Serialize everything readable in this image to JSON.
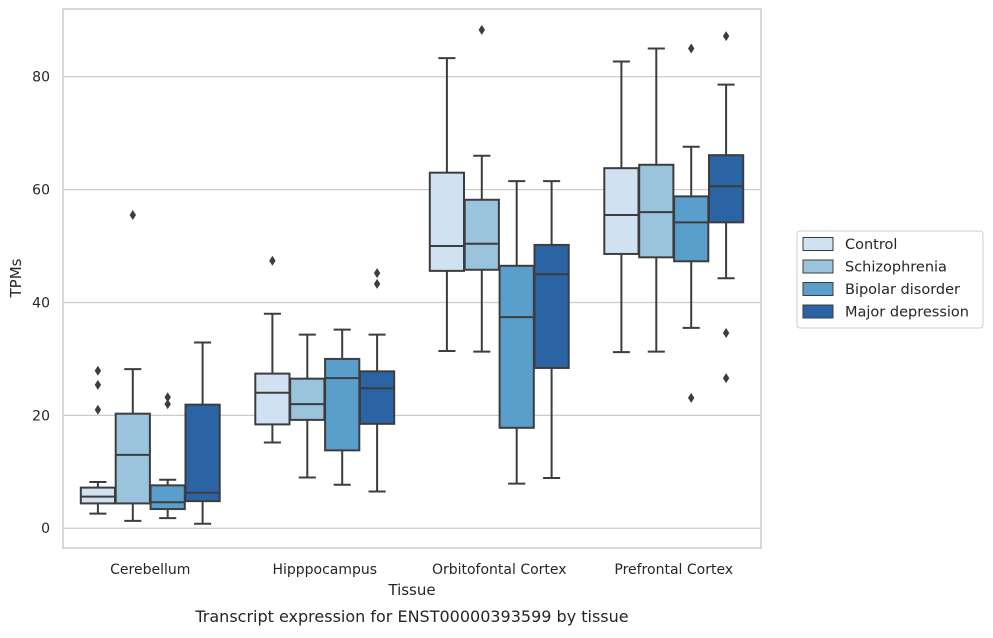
{
  "chart_data": {
    "type": "box",
    "caption": "Transcript expression for ENST00000393599 by tissue",
    "xlabel": "Tissue",
    "ylabel": "TPMs",
    "ylim": [
      -3.5,
      92
    ],
    "yticks": [
      0,
      20,
      40,
      60,
      80
    ],
    "grid": "horizontal",
    "legend_position": "outside-right",
    "categories": [
      "Cerebellum",
      "Hipppocampus",
      "Orbitofontal Cortex",
      "Prefrontal Cortex"
    ],
    "series": [
      {
        "name": "Control",
        "color": "#d0e1f2",
        "boxes": [
          {
            "whislo": 2.6,
            "q1": 4.4,
            "med": 5.6,
            "q3": 7.2,
            "whishi": 8.2,
            "fliers": [
              21.0,
              25.4,
              27.9
            ]
          },
          {
            "whislo": 15.2,
            "q1": 18.4,
            "med": 24.0,
            "q3": 27.4,
            "whishi": 38.0,
            "fliers": [
              47.4
            ]
          },
          {
            "whislo": 31.4,
            "q1": 45.6,
            "med": 50.0,
            "q3": 63.0,
            "whishi": 83.3,
            "fliers": []
          },
          {
            "whislo": 31.2,
            "q1": 48.6,
            "med": 55.5,
            "q3": 63.8,
            "whishi": 82.7,
            "fliers": []
          }
        ]
      },
      {
        "name": "Schizophrenia",
        "color": "#9ac3dd",
        "boxes": [
          {
            "whislo": 1.3,
            "q1": 4.4,
            "med": 13.0,
            "q3": 20.3,
            "whishi": 28.2,
            "fliers": [
              55.5
            ]
          },
          {
            "whislo": 9.0,
            "q1": 19.2,
            "med": 22.0,
            "q3": 26.5,
            "whishi": 34.3,
            "fliers": []
          },
          {
            "whislo": 31.3,
            "q1": 45.8,
            "med": 50.4,
            "q3": 58.2,
            "whishi": 66.0,
            "fliers": [
              88.3
            ]
          },
          {
            "whislo": 31.3,
            "q1": 48.0,
            "med": 56.0,
            "q3": 64.4,
            "whishi": 85.0,
            "fliers": []
          }
        ]
      },
      {
        "name": "Bipolar disorder",
        "color": "#5a9fcb",
        "boxes": [
          {
            "whislo": 1.8,
            "q1": 3.4,
            "med": 4.6,
            "q3": 7.6,
            "whishi": 8.6,
            "fliers": [
              22.0,
              23.2
            ]
          },
          {
            "whislo": 7.7,
            "q1": 13.8,
            "med": 26.6,
            "q3": 30.0,
            "whishi": 35.2,
            "fliers": []
          },
          {
            "whislo": 7.9,
            "q1": 17.8,
            "med": 37.4,
            "q3": 46.5,
            "whishi": 61.5,
            "fliers": []
          },
          {
            "whislo": 35.5,
            "q1": 47.3,
            "med": 54.2,
            "q3": 58.8,
            "whishi": 67.6,
            "fliers": [
              23.1,
              85.0
            ]
          }
        ]
      },
      {
        "name": "Major depression",
        "color": "#2a64a4",
        "boxes": [
          {
            "whislo": 0.8,
            "q1": 4.8,
            "med": 6.3,
            "q3": 21.9,
            "whishi": 32.9,
            "fliers": []
          },
          {
            "whislo": 6.5,
            "q1": 18.5,
            "med": 24.8,
            "q3": 27.8,
            "whishi": 34.3,
            "fliers": [
              43.3,
              45.2
            ]
          },
          {
            "whislo": 8.9,
            "q1": 28.4,
            "med": 45.0,
            "q3": 50.2,
            "whishi": 61.5,
            "fliers": []
          },
          {
            "whislo": 44.3,
            "q1": 54.2,
            "med": 60.6,
            "q3": 66.1,
            "whishi": 78.6,
            "fliers": [
              26.6,
              34.6,
              87.2
            ]
          }
        ]
      }
    ]
  }
}
